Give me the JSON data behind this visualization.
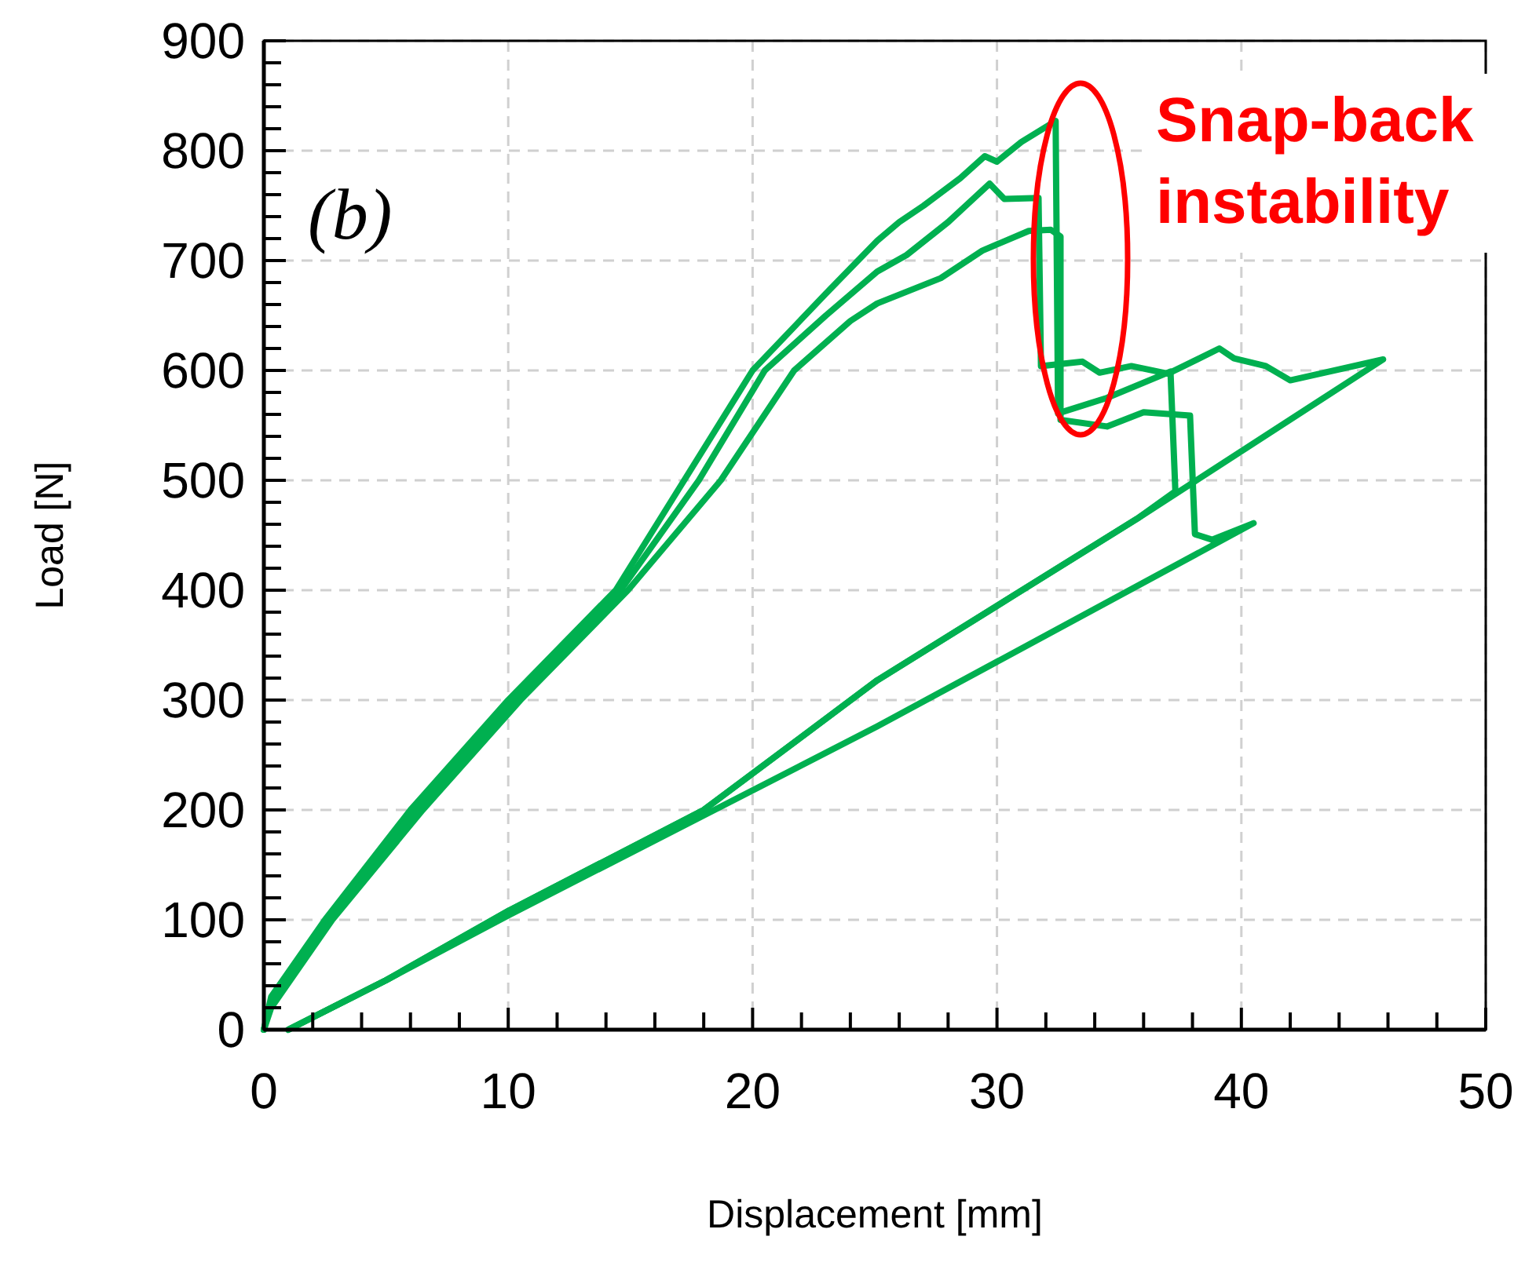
{
  "chart_data": {
    "type": "line",
    "xlabel": "Displacement [mm]",
    "ylabel": "Load [N]",
    "xlim": [
      0,
      50
    ],
    "ylim": [
      0,
      900
    ],
    "xticks": [
      0,
      10,
      20,
      30,
      40,
      50
    ],
    "yticks": [
      0,
      100,
      200,
      300,
      400,
      500,
      600,
      700,
      800,
      900
    ],
    "grid": true,
    "marker": "none",
    "line_style": "solid",
    "annotations": [
      "(b)",
      "Snap-back instability"
    ],
    "series": [
      {
        "color": "#00b050",
        "x": [
          0,
          0.3,
          2.5,
          6,
          10,
          14.4,
          17.2,
          20,
          23,
          25.1,
          26,
          27,
          28.5,
          29.5,
          30,
          31,
          32.4,
          32.5,
          34.5,
          37.1,
          37.3,
          35.8,
          25.1,
          18,
          10,
          5,
          1
        ],
        "values": [
          0,
          30,
          100,
          200,
          300,
          400,
          500,
          600,
          670,
          718,
          735,
          750,
          775,
          795,
          790,
          808,
          827,
          561,
          575,
          599,
          490,
          466,
          318,
          200,
          108,
          45,
          0
        ]
      },
      {
        "color": "#00b050",
        "x": [
          0,
          0.3,
          2.6,
          6.2,
          10.2,
          14.6,
          17.8,
          20.5,
          23,
          25.1,
          26.3,
          28,
          29.7,
          30.3,
          31.7,
          31.8,
          33.5,
          34.2,
          35.5,
          37,
          39.1,
          39.7,
          41,
          42,
          43,
          45.8,
          35.8,
          25.1,
          18,
          10,
          5,
          1
        ],
        "values": [
          0,
          25,
          100,
          200,
          300,
          400,
          500,
          600,
          650,
          690,
          705,
          735,
          770,
          756,
          757,
          604,
          608,
          598,
          604,
          597,
          620,
          611,
          604,
          591,
          596,
          610,
          466,
          318,
          200,
          108,
          45,
          0
        ]
      },
      {
        "color": "#00b050",
        "x": [
          0,
          0.3,
          2.8,
          6.5,
          10.5,
          14.9,
          18.7,
          21.7,
          24,
          25.1,
          27.7,
          29.4,
          31.3,
          32.2,
          32.6,
          32.6,
          34.5,
          36,
          37.9,
          38.1,
          38.8,
          40.5,
          25.1,
          18,
          10,
          5,
          1
        ],
        "values": [
          0,
          20,
          100,
          200,
          300,
          400,
          500,
          600,
          645,
          661,
          684,
          709,
          727,
          728,
          722,
          555,
          549,
          562,
          559,
          451,
          446,
          461,
          276,
          195,
          104,
          45,
          0
        ]
      }
    ]
  }
}
